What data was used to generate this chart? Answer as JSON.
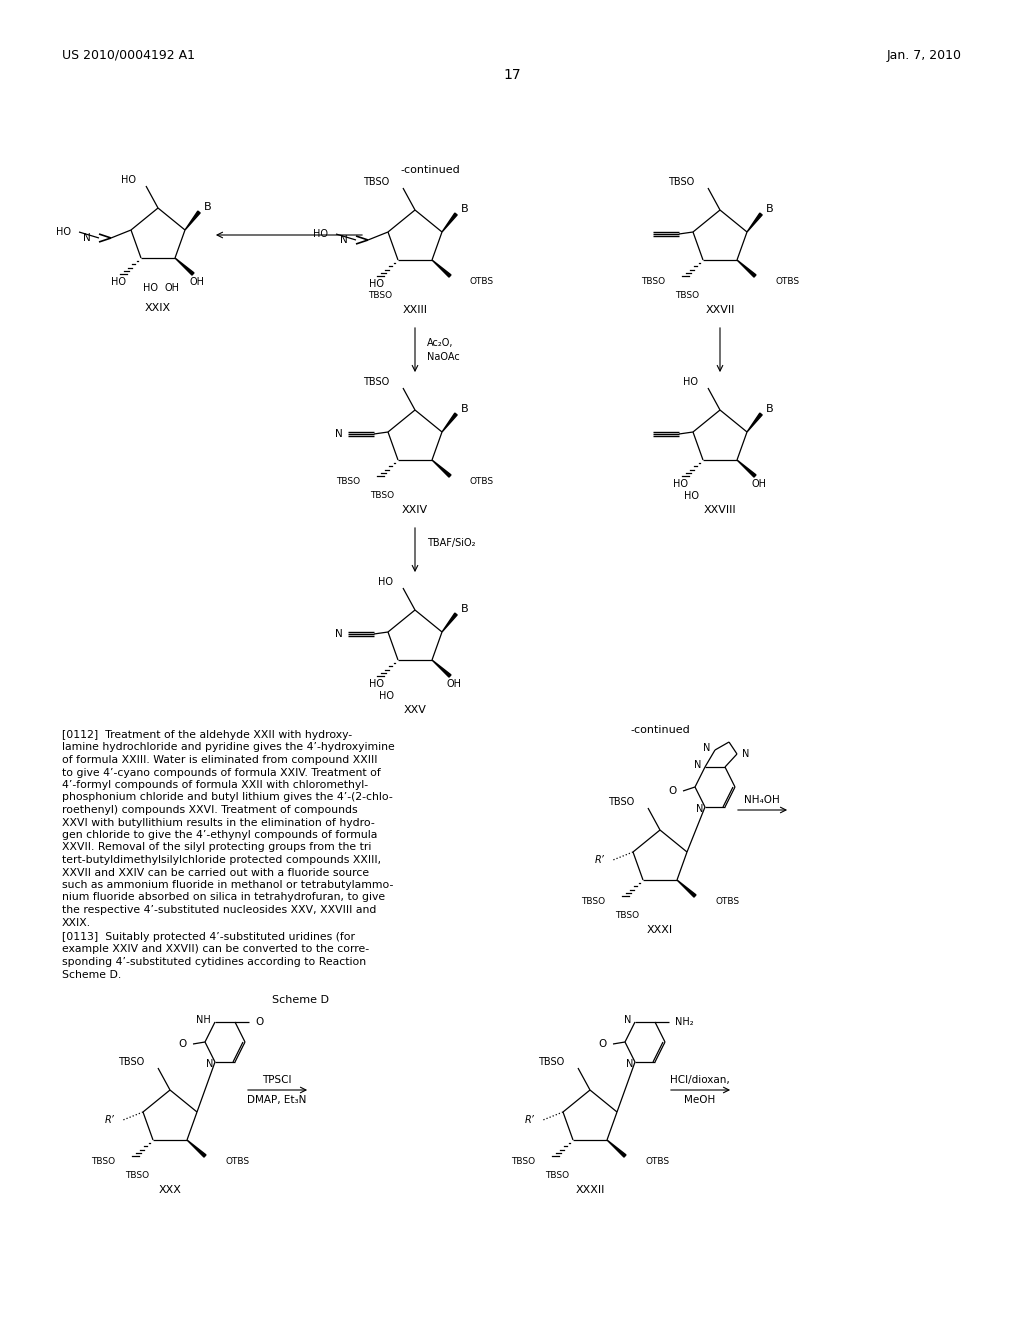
{
  "page_number": "17",
  "patent_number": "US 2010/0004192 A1",
  "patent_date": "Jan. 7, 2010",
  "background_color": "#ffffff",
  "text_color": "#000000",
  "continued": "-continued",
  "scheme_d": "Scheme D",
  "paragraph_0112": "[0112]  Treatment of the aldehyde XXII with hydroxy-\nlamine hydrochloride and pyridine gives the 4’-hydroxyimine\nof formula XXIII. Water is eliminated from compound XXIII\nto give 4’-cyano compounds of formula XXIV. Treatment of\n4’-formyl compounds of formula XXII with chloromethyl-\nphosphonium chloride and butyl lithium gives the 4’-(2-chlo-\nroethenyl) compounds XXVI. Treatment of compounds\nXXVI with butyllithium results in the elimination of hydro-\ngen chloride to give the 4’-ethynyl compounds of formula\nXXVII. Removal of the silyl protecting groups from the tri\ntert-butyldimethylsilylchloride protected compounds XXIII,\nXXVII and XXIV can be carried out with a fluoride source\nsuch as ammonium fluoride in methanol or tetrabutylammo-\nnium fluoride absorbed on silica in tetrahydrofuran, to give\nthe respective 4’-substituted nucleosides XXV, XXVIII and\nXXIX.",
  "paragraph_0113": "[0113]  Suitably protected 4’-substituted uridines (for\nexample XXIV and XXVII) can be converted to the corre-\nsponding 4’-substituted cytidines according to Reaction\nScheme D."
}
